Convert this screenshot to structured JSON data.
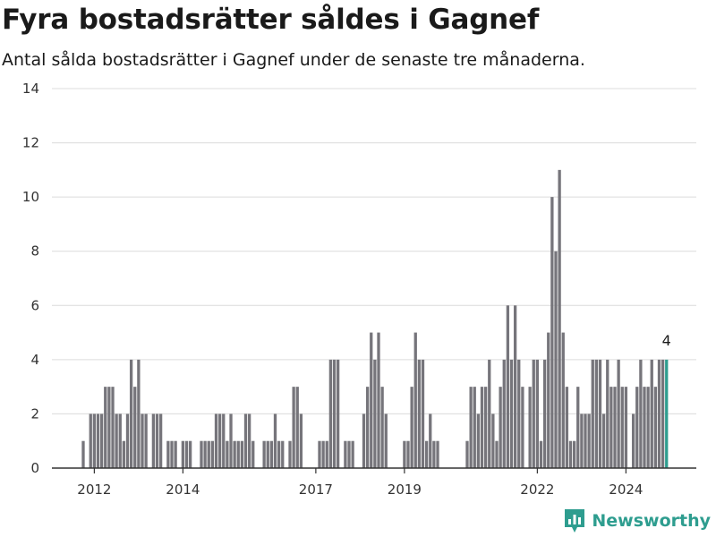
{
  "title": "Fyra bostadsrätter såldes i Gagnef",
  "subtitle": "Antal sålda bostadsrätter i Gagnef under de senaste tre månaderna.",
  "brand": {
    "name": "Newsworthy",
    "icon": "newsworthy-logo-icon"
  },
  "colors": {
    "bar": "#76757b",
    "highlight": "#2e9d8f",
    "grid": "#dcdcdc",
    "axis": "#333333"
  },
  "chart_data": {
    "type": "bar",
    "title": "",
    "xlabel": "",
    "ylabel": "",
    "ylim": [
      0,
      14
    ],
    "yticks": [
      0,
      2,
      4,
      6,
      8,
      10,
      12,
      14
    ],
    "xticks": [
      "2012",
      "2014",
      "2017",
      "2019",
      "2022",
      "2024"
    ],
    "grid": true,
    "x_start": "2011-10",
    "x_step": "month",
    "highlight_last": true,
    "last_label": "4",
    "series": [
      {
        "values": [
          1,
          0,
          2,
          2,
          2,
          2,
          3,
          3,
          3,
          2,
          2,
          1,
          2,
          4,
          3,
          4,
          2,
          2,
          0,
          2,
          2,
          2,
          0,
          1,
          1,
          1,
          0,
          1,
          1,
          1,
          0,
          0,
          1,
          1,
          1,
          1,
          2,
          2,
          2,
          1,
          2,
          1,
          1,
          1,
          2,
          2,
          1,
          0,
          0,
          1,
          1,
          1,
          2,
          1,
          1,
          0,
          1,
          3,
          3,
          2,
          0,
          0,
          0,
          0,
          1,
          1,
          1,
          4,
          4,
          4,
          0,
          1,
          1,
          1,
          0,
          0,
          2,
          3,
          5,
          4,
          5,
          3,
          2,
          0,
          0,
          0,
          0,
          1,
          1,
          3,
          5,
          4,
          4,
          1,
          2,
          1,
          1,
          0,
          0,
          0,
          0,
          0,
          0,
          0,
          1,
          3,
          3,
          2,
          3,
          3,
          4,
          2,
          1,
          3,
          4,
          6,
          4,
          6,
          4,
          3,
          0,
          3,
          4,
          4,
          1,
          4,
          5,
          10,
          8,
          11,
          5,
          3,
          1,
          1,
          3,
          2,
          2,
          2,
          4,
          4,
          4,
          2,
          4,
          3,
          3,
          4,
          3,
          3,
          0,
          2,
          3,
          4,
          3,
          3,
          4,
          3,
          4,
          4,
          4
        ]
      }
    ]
  }
}
